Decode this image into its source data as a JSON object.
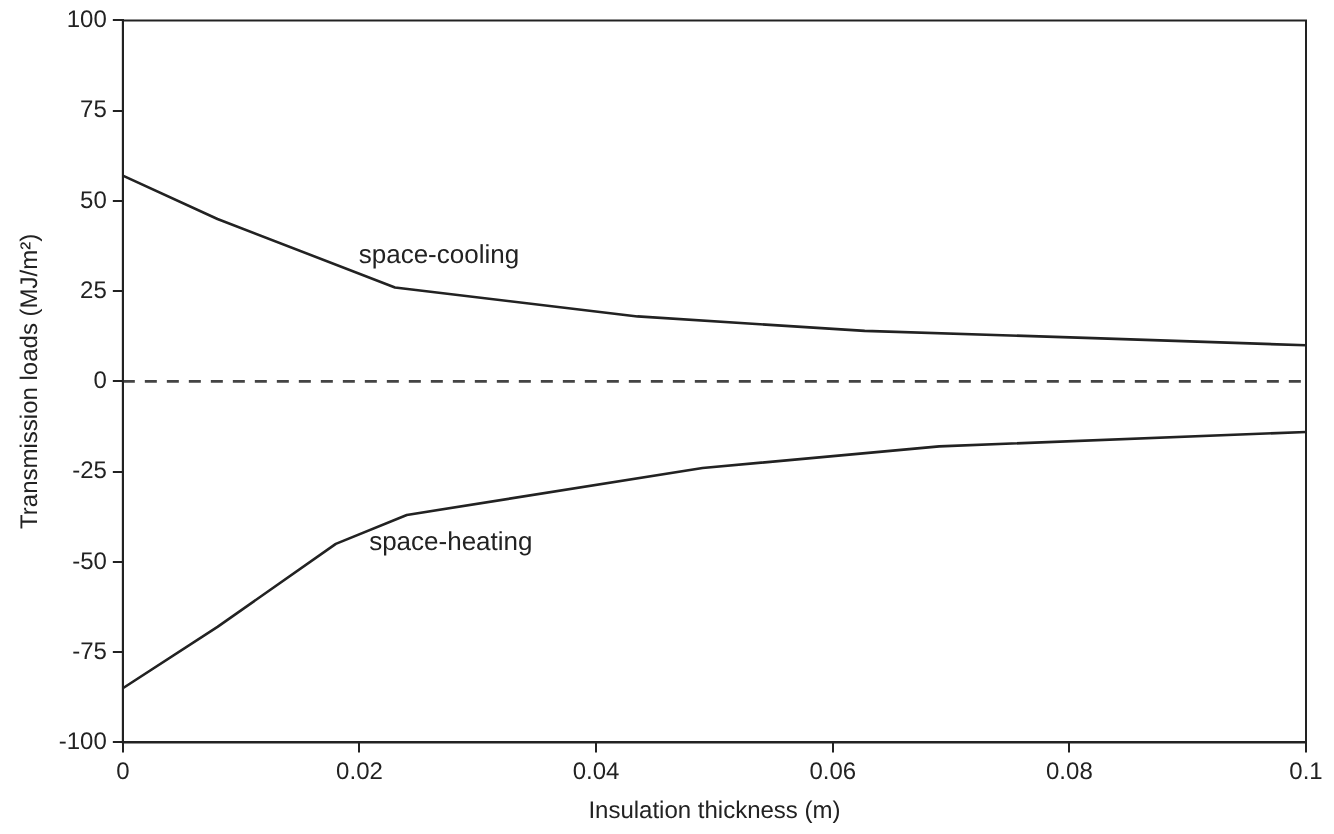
{
  "chart_data": {
    "type": "line",
    "xlabel": "Insulation thickness (m)",
    "ylabel": "Transmission loads (MJ/m²)",
    "xlim": [
      0,
      0.1
    ],
    "xticks": [
      0,
      0.02,
      0.04,
      0.06,
      0.08,
      {
        "value": 0.1,
        "label": "0.1"
      }
    ],
    "ylim": [
      -100,
      100
    ],
    "yticks": [
      -100,
      -75,
      -50,
      -25,
      0,
      25,
      50,
      75,
      100
    ],
    "grid": false,
    "legend": false,
    "marker": "none",
    "series": [
      {
        "color": "#222222",
        "x": [
          0,
          0.008,
          0.023,
          0.0435,
          0.0627,
          0.082,
          0.1
        ],
        "values": [
          57,
          45,
          26,
          18,
          14,
          12,
          10
        ]
      },
      {
        "color": "#222222",
        "x": [
          0,
          0.008,
          0.018,
          0.024,
          0.049,
          0.069,
          0.1
        ],
        "values": [
          -85,
          -68,
          -45,
          -37,
          -24,
          -18,
          -14
        ]
      }
    ],
    "ref_lines": [
      {
        "axis": "y",
        "value": 0,
        "line_style": "dashed",
        "color": "#444444"
      }
    ],
    "annotations": [
      {
        "text": "space-cooling",
        "x": 0.023,
        "y": 26
      },
      {
        "text": "space-heating",
        "x": 0.024,
        "y": -37
      }
    ]
  }
}
